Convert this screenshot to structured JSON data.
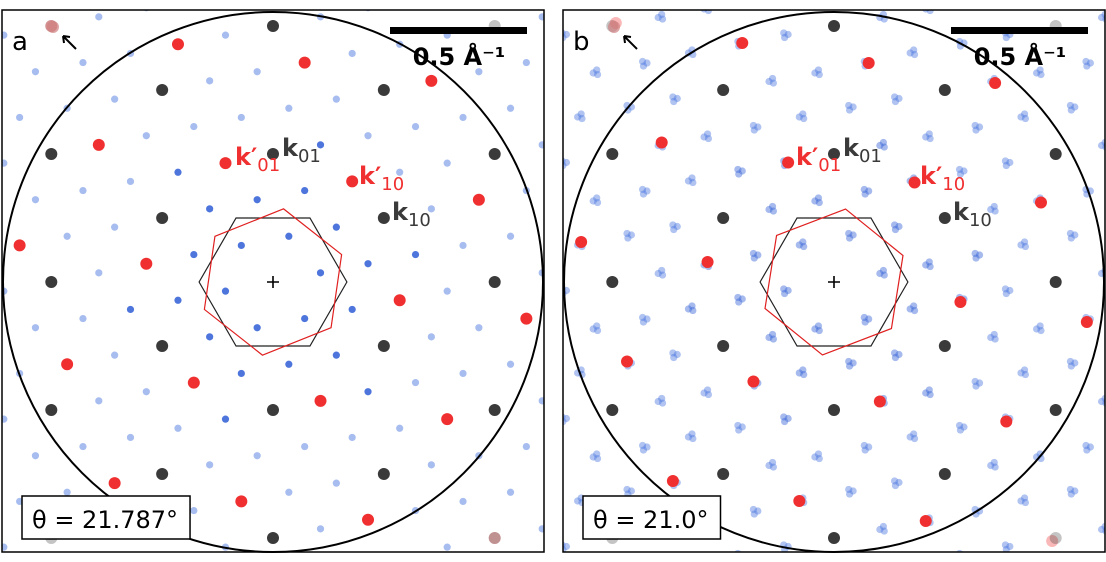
{
  "panels": [
    {
      "label": "a",
      "scale_bar": "0.5 Å⁻¹",
      "theta": {
        "value": 21.787,
        "label": "θ = 21.787°"
      },
      "vectors": {
        "k_prime_01": {
          "symbol": "k′",
          "subscript": "01"
        },
        "k_01": {
          "symbol": "k",
          "subscript": "01"
        },
        "k_prime_10": {
          "symbol": "k′",
          "subscript": "10"
        },
        "k_10": {
          "symbol": "k",
          "subscript": "10"
        }
      }
    },
    {
      "label": "b",
      "scale_bar": "0.5 Å⁻¹",
      "theta": {
        "value": 21.0,
        "label": "θ = 21.0°"
      },
      "vectors": {
        "k_prime_01": {
          "symbol": "k′",
          "subscript": "01"
        },
        "k_01": {
          "symbol": "k",
          "subscript": "01"
        },
        "k_prime_10": {
          "symbol": "k′",
          "subscript": "10"
        },
        "k_10": {
          "symbol": "k",
          "subscript": "10"
        }
      }
    }
  ]
}
